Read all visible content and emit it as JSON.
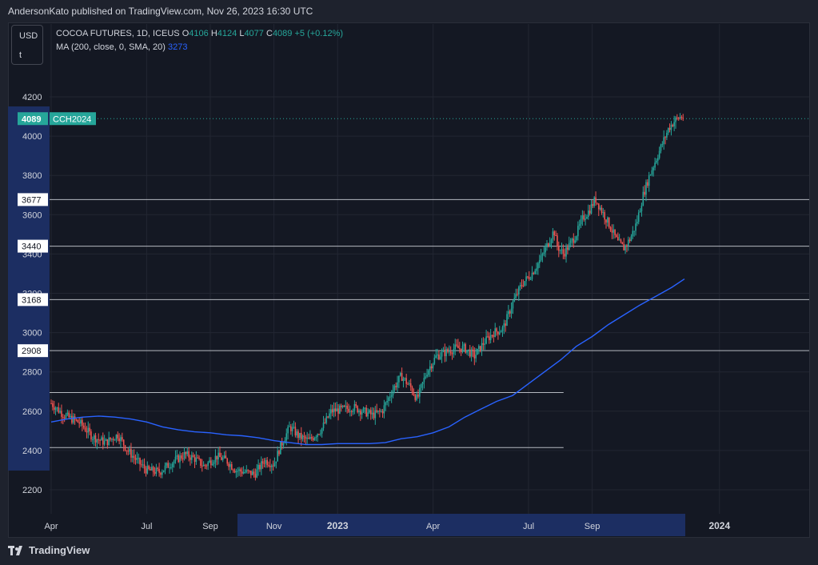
{
  "header": {
    "publisher_line": "AndersonKato published on TradingView.com, Nov 26, 2023 16:30 UTC"
  },
  "toolbar": {
    "currency": "USD",
    "unit": "t"
  },
  "legend": {
    "symbol_line": "COCOA FUTURES, 1D, ICEUS",
    "open_key": "O",
    "open": "4106",
    "high_key": "H",
    "high": "4124",
    "low_key": "L",
    "low": "4077",
    "close_key": "C",
    "close": "4089",
    "change": "+5 (+0.12%)",
    "ma_label": "MA (200, close, 0, SMA, 20)",
    "ma_value": "3273"
  },
  "footer": {
    "brand": "TradingView"
  },
  "colors": {
    "up": "#26a69a",
    "down": "#ef5350",
    "ma": "#2962ff",
    "level": "#d1d4dc",
    "axis_highlight": "#1c2e62"
  },
  "chart_data": {
    "type": "line",
    "title": "COCOA FUTURES, 1D, ICEUS",
    "ylim": [
      2150,
      4260
    ],
    "y_ticks": [
      "2200",
      "2400",
      "2600",
      "2800",
      "3000",
      "3200",
      "3400",
      "3600",
      "3800",
      "4000",
      "4200"
    ],
    "x_ticks": [
      {
        "label": "Apr",
        "month": 0
      },
      {
        "label": "Jul",
        "month": 3
      },
      {
        "label": "Sep",
        "month": 5
      },
      {
        "label": "Nov",
        "month": 7
      },
      {
        "label": "2023",
        "month": 9,
        "bold": true
      },
      {
        "label": "Apr",
        "month": 12
      },
      {
        "label": "Jul",
        "month": 15
      },
      {
        "label": "Sep",
        "month": 17
      },
      {
        "label": "2024",
        "month": 21,
        "bold": true
      }
    ],
    "last_price": {
      "value": 4089,
      "label": "4089",
      "symbol": "CCH2024"
    },
    "levels": [
      {
        "value": 3677,
        "label": "3677",
        "end": "full"
      },
      {
        "value": 3440,
        "label": "3440",
        "end": "full"
      },
      {
        "value": 3168,
        "label": "3168",
        "end": "full"
      },
      {
        "value": 2908,
        "label": "2908",
        "end": "full"
      },
      {
        "value": 2695,
        "label": "",
        "end": "Aug"
      },
      {
        "value": 2415,
        "label": "",
        "end": "Aug"
      }
    ],
    "price_path": [
      [
        0.0,
        2640
      ],
      [
        0.4,
        2580
      ],
      [
        0.9,
        2540
      ],
      [
        1.3,
        2470
      ],
      [
        1.7,
        2440
      ],
      [
        2.1,
        2480
      ],
      [
        2.4,
        2400
      ],
      [
        2.8,
        2330
      ],
      [
        3.0,
        2300
      ],
      [
        3.4,
        2290
      ],
      [
        3.8,
        2340
      ],
      [
        4.2,
        2380
      ],
      [
        4.5,
        2360
      ],
      [
        4.8,
        2320
      ],
      [
        5.2,
        2370
      ],
      [
        5.5,
        2350
      ],
      [
        5.8,
        2300
      ],
      [
        6.1,
        2290
      ],
      [
        6.4,
        2280
      ],
      [
        6.7,
        2350
      ],
      [
        7.0,
        2330
      ],
      [
        7.2,
        2420
      ],
      [
        7.5,
        2520
      ],
      [
        7.8,
        2470
      ],
      [
        8.1,
        2450
      ],
      [
        8.5,
        2510
      ],
      [
        8.8,
        2600
      ],
      [
        9.2,
        2610
      ],
      [
        9.5,
        2620
      ],
      [
        9.8,
        2600
      ],
      [
        10.1,
        2580
      ],
      [
        10.4,
        2600
      ],
      [
        10.7,
        2700
      ],
      [
        11.0,
        2780
      ],
      [
        11.3,
        2720
      ],
      [
        11.5,
        2660
      ],
      [
        11.8,
        2800
      ],
      [
        12.1,
        2880
      ],
      [
        12.4,
        2900
      ],
      [
        12.7,
        2920
      ],
      [
        13.0,
        2920
      ],
      [
        13.3,
        2880
      ],
      [
        13.6,
        2950
      ],
      [
        13.9,
        3000
      ],
      [
        14.2,
        3020
      ],
      [
        14.5,
        3150
      ],
      [
        14.8,
        3250
      ],
      [
        15.1,
        3300
      ],
      [
        15.4,
        3380
      ],
      [
        15.6,
        3450
      ],
      [
        15.8,
        3520
      ],
      [
        15.9,
        3440
      ],
      [
        16.1,
        3400
      ],
      [
        16.3,
        3450
      ],
      [
        16.5,
        3500
      ],
      [
        16.7,
        3580
      ],
      [
        16.9,
        3620
      ],
      [
        17.1,
        3680
      ],
      [
        17.3,
        3620
      ],
      [
        17.5,
        3560
      ],
      [
        17.8,
        3460
      ],
      [
        18.0,
        3430
      ],
      [
        18.2,
        3480
      ],
      [
        18.4,
        3560
      ],
      [
        18.6,
        3700
      ],
      [
        18.8,
        3800
      ],
      [
        19.0,
        3880
      ],
      [
        19.2,
        3960
      ],
      [
        19.4,
        4040
      ],
      [
        19.6,
        4080
      ],
      [
        19.8,
        4100
      ],
      [
        19.9,
        4089
      ]
    ],
    "ma_path": [
      [
        0.0,
        2545
      ],
      [
        0.5,
        2560
      ],
      [
        1.0,
        2570
      ],
      [
        1.5,
        2575
      ],
      [
        2.0,
        2570
      ],
      [
        2.5,
        2560
      ],
      [
        3.0,
        2545
      ],
      [
        3.5,
        2520
      ],
      [
        4.0,
        2505
      ],
      [
        4.5,
        2495
      ],
      [
        5.0,
        2490
      ],
      [
        5.5,
        2480
      ],
      [
        6.0,
        2475
      ],
      [
        6.5,
        2465
      ],
      [
        7.0,
        2450
      ],
      [
        7.5,
        2440
      ],
      [
        8.0,
        2430
      ],
      [
        8.5,
        2430
      ],
      [
        9.0,
        2435
      ],
      [
        9.5,
        2435
      ],
      [
        10.0,
        2435
      ],
      [
        10.5,
        2440
      ],
      [
        11.0,
        2460
      ],
      [
        11.5,
        2470
      ],
      [
        12.0,
        2490
      ],
      [
        12.5,
        2520
      ],
      [
        13.0,
        2570
      ],
      [
        13.5,
        2610
      ],
      [
        14.0,
        2650
      ],
      [
        14.5,
        2680
      ],
      [
        15.0,
        2740
      ],
      [
        15.5,
        2800
      ],
      [
        16.0,
        2860
      ],
      [
        16.5,
        2930
      ],
      [
        17.0,
        2980
      ],
      [
        17.5,
        3040
      ],
      [
        18.0,
        3090
      ],
      [
        18.5,
        3140
      ],
      [
        19.0,
        3185
      ],
      [
        19.5,
        3230
      ],
      [
        19.9,
        3273
      ]
    ]
  }
}
